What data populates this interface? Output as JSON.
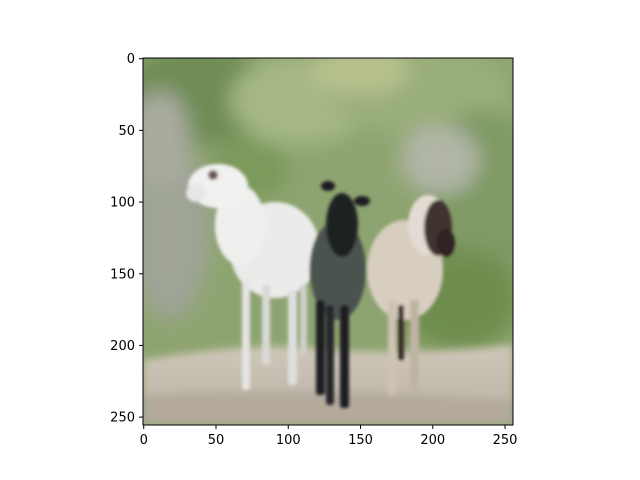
{
  "image": {
    "description_icon": "photo-three-sheep-on-dirt-path",
    "palette": {
      "background_green": "#8aa36a",
      "foliage_dark": "#5d7a48",
      "rock_grey": "#a7a9a0",
      "path_beige": "#c9c0b2",
      "sheep_white": "#eeeeec",
      "sheep_dark": "#2a2b2f",
      "sheep_tan": "#d6cbbb",
      "head_brown": "#4a3a36"
    }
  },
  "chart_data": {
    "type": "image",
    "extent": {
      "x": [
        0,
        255
      ],
      "y": [
        0,
        255
      ]
    },
    "y_inverted": true,
    "x_ticks": [
      0,
      50,
      100,
      150,
      200,
      250
    ],
    "y_ticks": [
      0,
      50,
      100,
      150,
      200,
      250
    ]
  }
}
